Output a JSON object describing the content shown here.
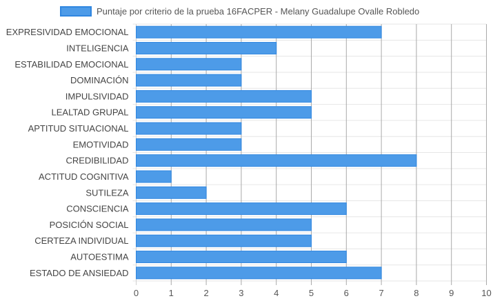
{
  "chart_data": {
    "type": "bar",
    "orientation": "horizontal",
    "categories": [
      "EXPRESIVIDAD EMOCIONAL",
      "INTELIGENCIA",
      "ESTABILIDAD EMOCIONAL",
      "DOMINACIÓN",
      "IMPULSIVIDAD",
      "LEALTAD GRUPAL",
      "APTITUD SITUACIONAL",
      "EMOTIVIDAD",
      "CREDIBILIDAD",
      "ACTITUD COGNITIVA",
      "SUTILEZA",
      "CONSCIENCIA",
      "POSICIÓN SOCIAL",
      "CERTEZA INDIVIDUAL",
      "AUTOESTIMA",
      "ESTADO DE ANSIEDAD"
    ],
    "series": [
      {
        "name": "Puntaje por criterio de la prueba 16FACPER - Melany Guadalupe Ovalle Robledo",
        "values": [
          7,
          4,
          3,
          3,
          5,
          5,
          3,
          3,
          8,
          1,
          2,
          6,
          5,
          5,
          6,
          7
        ],
        "color": "#4d9be8",
        "border_color": "#2f86e0"
      }
    ],
    "x_ticks": [
      "0",
      "1",
      "2",
      "3",
      "4",
      "5",
      "6",
      "7",
      "8",
      "9",
      "10"
    ],
    "xlim": [
      0,
      10
    ],
    "grid": true,
    "legend_position": "top",
    "title": "",
    "xlabel": "",
    "ylabel": ""
  }
}
